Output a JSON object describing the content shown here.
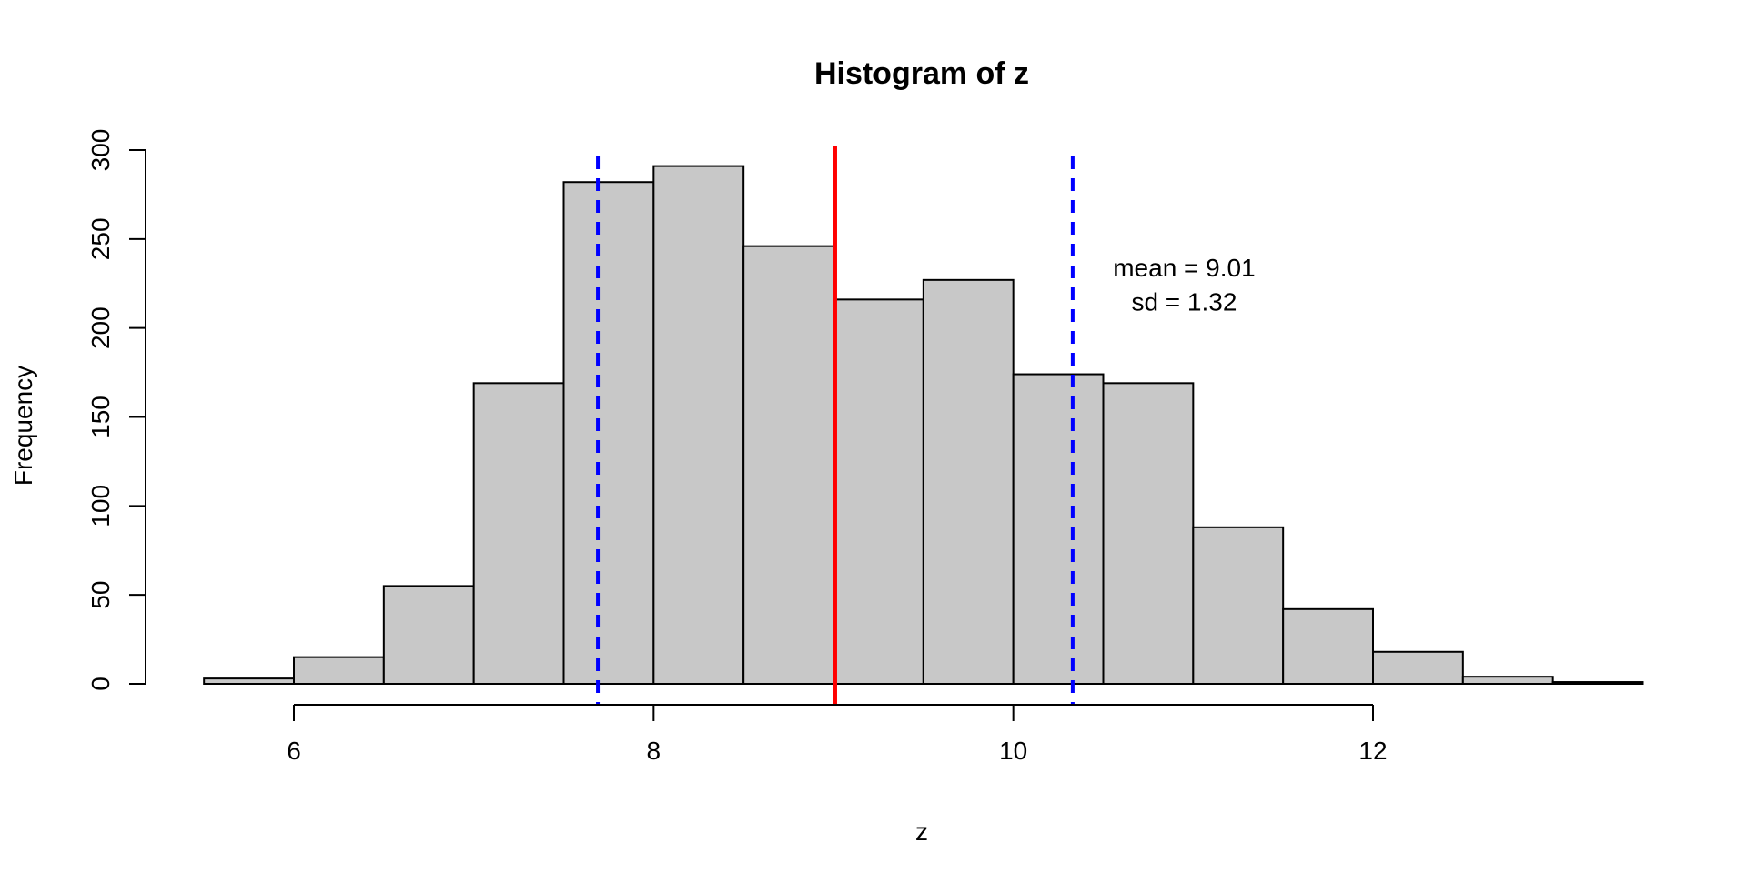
{
  "chart_data": {
    "type": "bar",
    "title": "Histogram of z",
    "xlabel": "z",
    "ylabel": "Frequency",
    "bins": [
      {
        "start": 5.5,
        "end": 6.0,
        "count": 3
      },
      {
        "start": 6.0,
        "end": 6.5,
        "count": 15
      },
      {
        "start": 6.5,
        "end": 7.0,
        "count": 55
      },
      {
        "start": 7.0,
        "end": 7.5,
        "count": 169
      },
      {
        "start": 7.5,
        "end": 8.0,
        "count": 282
      },
      {
        "start": 8.0,
        "end": 8.5,
        "count": 291
      },
      {
        "start": 8.5,
        "end": 9.0,
        "count": 246
      },
      {
        "start": 9.0,
        "end": 9.5,
        "count": 216
      },
      {
        "start": 9.5,
        "end": 10.0,
        "count": 227
      },
      {
        "start": 10.0,
        "end": 10.5,
        "count": 174
      },
      {
        "start": 10.5,
        "end": 11.0,
        "count": 169
      },
      {
        "start": 11.0,
        "end": 11.5,
        "count": 88
      },
      {
        "start": 11.5,
        "end": 12.0,
        "count": 42
      },
      {
        "start": 12.0,
        "end": 12.5,
        "count": 18
      },
      {
        "start": 12.5,
        "end": 13.0,
        "count": 4
      },
      {
        "start": 13.0,
        "end": 13.5,
        "count": 1
      }
    ],
    "xlim": [
      5.5,
      13.5
    ],
    "ylim": [
      0,
      300
    ],
    "x_ticks": [
      6,
      8,
      10,
      12
    ],
    "y_ticks": [
      0,
      50,
      100,
      150,
      200,
      250,
      300
    ],
    "bar_fill": "#c8c8c8",
    "bar_stroke": "#000000",
    "grid": false,
    "reference_lines": [
      {
        "x": 9.01,
        "color": "#ff0000",
        "style": "solid"
      },
      {
        "x": 7.69,
        "color": "#0000ff",
        "style": "dashed"
      },
      {
        "x": 10.33,
        "color": "#0000ff",
        "style": "dashed"
      }
    ],
    "annotations": [
      {
        "text": "mean =  9.01",
        "x": 10.95,
        "y": 234
      },
      {
        "text": "sd =  1.32",
        "x": 10.95,
        "y": 215
      }
    ]
  }
}
